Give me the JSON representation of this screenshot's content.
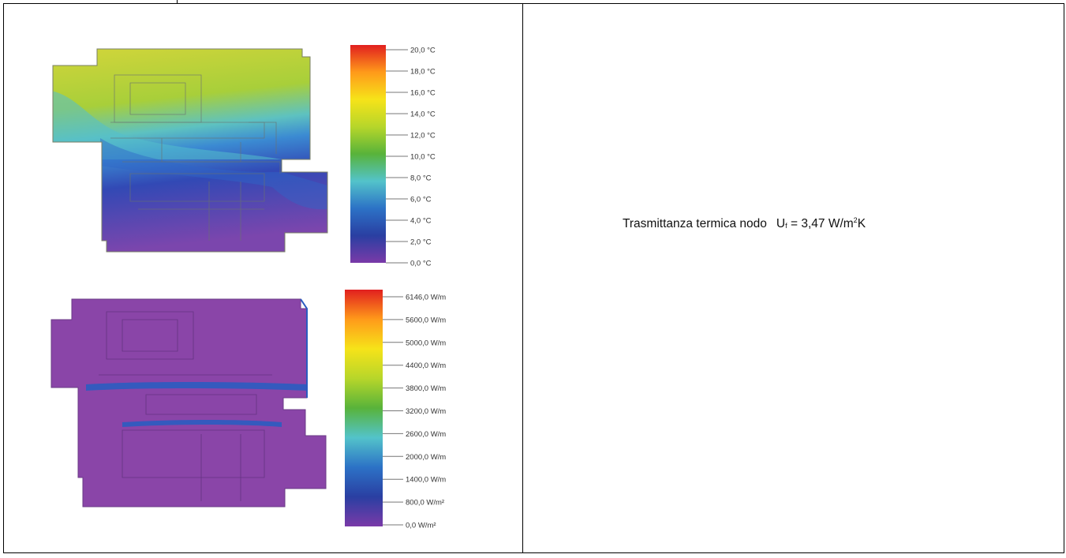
{
  "note": {
    "label": "Trasmittanza termica nodo",
    "symbol": "U",
    "symbol_sub": "f",
    "equals": "=",
    "value": "3,47",
    "unit_a": "W/m",
    "unit_sup": "2",
    "unit_b": "K"
  },
  "temperature_legend": {
    "ticks": [
      "20,0 °C",
      "18,0 °C",
      "16,0 °C",
      "14,0 °C",
      "12,0 °C",
      "10,0 °C",
      "8,0 °C",
      "6,0 °C",
      "4,0 °C",
      "2,0 °C",
      "0,0 °C"
    ],
    "gradient": [
      "#e11f1f",
      "#ff9a1a",
      "#f6e319",
      "#b7d62a",
      "#58b33a",
      "#53c3ca",
      "#2c72c6",
      "#2a3fa2",
      "#7a3aa8"
    ]
  },
  "heatflux_legend": {
    "ticks": [
      "6146,0 W/m",
      "5600,0 W/m",
      "5000,0 W/m",
      "4400,0 W/m",
      "3800,0 W/m",
      "3200,0 W/m",
      "2600,0 W/m",
      "2000,0 W/m",
      "1400,0 W/m",
      "800,0 W/m²",
      "0,0 W/m²"
    ],
    "gradient": [
      "#e11f1f",
      "#ff9a1a",
      "#f6e319",
      "#b7d62a",
      "#58b33a",
      "#53c3ca",
      "#2c72c6",
      "#2a3fa2",
      "#7a3aa8"
    ]
  },
  "colors": {
    "profile_purple": "#8a45a8",
    "profile_blue": "#2a5cc0",
    "profile_yellow": "#d8dc3a"
  }
}
